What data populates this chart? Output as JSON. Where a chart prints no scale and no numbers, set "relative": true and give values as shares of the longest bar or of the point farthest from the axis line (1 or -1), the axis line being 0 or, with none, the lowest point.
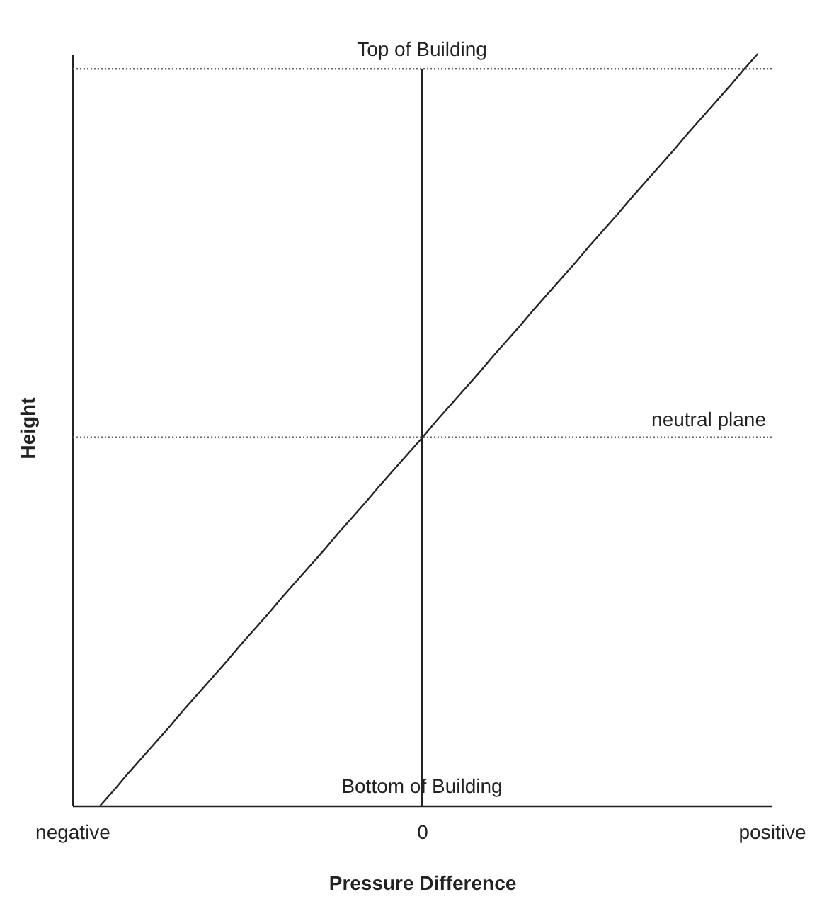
{
  "chart_data": {
    "type": "line",
    "xlabel": "Pressure Difference",
    "ylabel": "Height",
    "relative": true,
    "tick_labels": "x",
    "categories": [
      "negative",
      null,
      null,
      null,
      null,
      null,
      null,
      null,
      null,
      null,
      null,
      null,
      null,
      null,
      null,
      null,
      null,
      null,
      null,
      null,
      null,
      null,
      null,
      null,
      null,
      "0",
      null,
      null,
      null,
      null,
      null,
      null,
      null,
      null,
      null,
      null,
      null,
      null,
      null,
      null,
      null,
      null,
      null,
      null,
      null,
      null,
      null,
      null,
      null,
      null,
      "positive"
    ],
    "series": [
      {
        "color": "#222222",
        "values": [
          null,
          null,
          0,
          0.021,
          0.043,
          0.064,
          0.085,
          0.106,
          0.128,
          0.149,
          0.17,
          0.191,
          0.213,
          0.234,
          0.255,
          0.277,
          0.298,
          0.319,
          0.34,
          0.362,
          0.383,
          0.404,
          0.426,
          0.447,
          0.468,
          0.489,
          0.511,
          0.532,
          0.553,
          0.574,
          0.596,
          0.617,
          0.638,
          0.66,
          0.681,
          0.702,
          0.723,
          0.745,
          0.766,
          0.787,
          0.809,
          0.83,
          0.851,
          0.872,
          0.894,
          0.915,
          0.936,
          0.957,
          0.979,
          1,
          null
        ]
      }
    ],
    "ref_lines": [
      {
        "axis": "y",
        "value": 0.98,
        "line_style": "dotted",
        "color": "#666666"
      },
      {
        "axis": "y",
        "value": 0.49,
        "label": "neutral plane",
        "line_style": "dotted",
        "color": "#666666"
      },
      {
        "axis": "x",
        "value": "0",
        "line_style": "solid",
        "color": "#222222"
      }
    ],
    "annotations": [
      {
        "text": "Top of Building",
        "y": 0.98
      },
      "Bottom of Building"
    ]
  }
}
